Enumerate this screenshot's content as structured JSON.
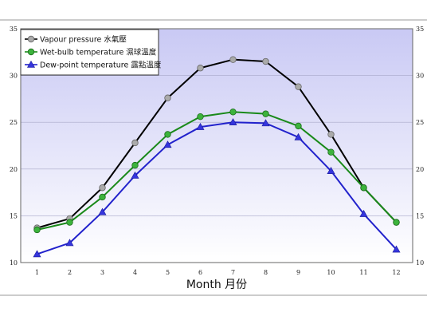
{
  "chart_data": {
    "type": "line",
    "xlabel": "Month 月份",
    "ylabel": "",
    "x": [
      1,
      2,
      3,
      4,
      5,
      6,
      7,
      8,
      9,
      10,
      11,
      12
    ],
    "xlim": [
      0.5,
      12.5
    ],
    "ylim": [
      10,
      35
    ],
    "yticks": [
      10,
      15,
      20,
      25,
      30,
      35
    ],
    "grid": true,
    "legend": "top-left",
    "series": [
      {
        "name": "Vapour pressure 水氣壓",
        "color": "#000000",
        "marker_color": "#aaaaaa",
        "marker": "circle",
        "values": [
          13.7,
          14.7,
          18.0,
          22.8,
          27.6,
          30.8,
          31.7,
          31.5,
          28.8,
          23.7,
          18.0,
          14.3
        ]
      },
      {
        "name": "Wet-bulb temperature 濕球溫度",
        "color": "#1a8a1a",
        "marker_color": "#3cb33c",
        "marker": "circle",
        "values": [
          13.5,
          14.3,
          17.0,
          20.4,
          23.7,
          25.6,
          26.1,
          25.9,
          24.6,
          21.8,
          18.0,
          14.3
        ]
      },
      {
        "name": "Dew-point temperature 露點溫度",
        "color": "#2222cc",
        "marker_color": "#3535dd",
        "marker": "triangle",
        "values": [
          10.9,
          12.1,
          15.4,
          19.3,
          22.6,
          24.5,
          25.0,
          24.9,
          23.4,
          19.8,
          15.2,
          11.4
        ]
      }
    ]
  }
}
